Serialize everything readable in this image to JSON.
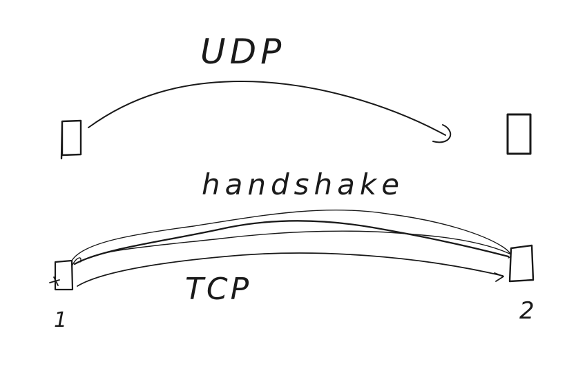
{
  "diagram": {
    "labels": {
      "udp": "UDP",
      "handshake": "handshake",
      "tcp": "TCP",
      "node_1": "1",
      "node_2": "2"
    },
    "colors": {
      "ink": "#1a1a1a",
      "background": "#ffffff"
    }
  }
}
